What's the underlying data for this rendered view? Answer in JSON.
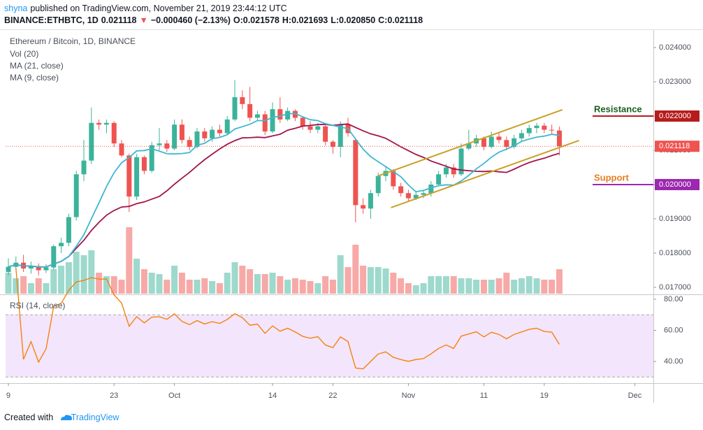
{
  "header": {
    "line1": [
      {
        "text": "shyna",
        "color": "#2196f3"
      },
      {
        "text": "published on TradingView.com, November 21, 2019 23:44:12 UTC",
        "color": "#131722"
      }
    ],
    "line2": [
      {
        "text": "BINANCE:ETHBTC, 1D",
        "color": "#131722"
      },
      {
        "text": "0.021118",
        "color": "#131722"
      },
      {
        "text": "▼",
        "color": "#ef5350"
      },
      {
        "text": "−0.000460 (−2.13%)",
        "color": "#131722"
      },
      {
        "text": "O:0.021578",
        "color": "#131722"
      },
      {
        "text": "H:0.021693",
        "color": "#131722"
      },
      {
        "text": "L:0.020850",
        "color": "#131722"
      },
      {
        "text": "C:0.021118",
        "color": "#131722"
      }
    ]
  },
  "footer": {
    "created": "Created with",
    "brand": "TradingView"
  },
  "chart_data": {
    "type": "candlestick",
    "title": "Ethereum / Bitcoin, 1D, BINANCE",
    "up_color": "#3bb39a",
    "down_color": "#ef5350",
    "xlim": [
      -0.37,
      85.46
    ],
    "xticks": [
      {
        "value": 0,
        "label": "9"
      },
      {
        "value": 14,
        "label": "23"
      },
      {
        "value": 22,
        "label": "Oct"
      },
      {
        "value": 35,
        "label": "14"
      },
      {
        "value": 43,
        "label": "22"
      },
      {
        "value": 53,
        "label": "Nov"
      },
      {
        "value": 63,
        "label": "11"
      },
      {
        "value": 71,
        "label": "19"
      },
      {
        "value": 83,
        "label": "Dec"
      }
    ],
    "ylim": [
      0.016816,
      0.024469
    ],
    "yticks": [
      {
        "value": 0.017,
        "label": "0.017000"
      },
      {
        "value": 0.018,
        "label": "0.018000"
      },
      {
        "value": 0.019,
        "label": "0.019000"
      },
      {
        "value": 0.02,
        "label": "0.020000"
      },
      {
        "value": 0.021,
        "label": "0.021000"
      },
      {
        "value": 0.022,
        "label": "0.022000"
      },
      {
        "value": 0.023,
        "label": "0.023000"
      },
      {
        "value": 0.024,
        "label": "0.024000"
      }
    ],
    "candles": {
      "open": [
        0.01745,
        0.0176,
        0.01772,
        0.01755,
        0.01762,
        0.0175,
        0.01758,
        0.0182,
        0.0183,
        0.01905,
        0.0203,
        0.0207,
        0.0218,
        0.02175,
        0.0218,
        0.0212,
        0.02085,
        0.01965,
        0.0208,
        0.0204,
        0.02115,
        0.0212,
        0.02105,
        0.02175,
        0.0213,
        0.0211,
        0.02155,
        0.02135,
        0.0216,
        0.0215,
        0.0219,
        0.02255,
        0.02235,
        0.02195,
        0.02205,
        0.02155,
        0.0222,
        0.0219,
        0.02215,
        0.02195,
        0.0217,
        0.0216,
        0.0217,
        0.02125,
        0.0211,
        0.02175,
        0.0213,
        0.0194,
        0.0193,
        0.01975,
        0.02025,
        0.0204,
        0.01995,
        0.01975,
        0.0196,
        0.0197,
        0.01975,
        0.02,
        0.0203,
        0.0205,
        0.0203,
        0.02105,
        0.0212,
        0.02135,
        0.0211,
        0.0214,
        0.0213,
        0.0211,
        0.02135,
        0.0215,
        0.02165,
        0.02172,
        0.0216,
        0.021578
      ],
      "high": [
        0.01785,
        0.0179,
        0.01795,
        0.01775,
        0.0177,
        0.01768,
        0.01825,
        0.01845,
        0.01915,
        0.0204,
        0.0213,
        0.02225,
        0.0219,
        0.0219,
        0.02185,
        0.0213,
        0.0209,
        0.0209,
        0.02085,
        0.02125,
        0.02165,
        0.0213,
        0.0219,
        0.0219,
        0.0214,
        0.02165,
        0.02165,
        0.0217,
        0.02175,
        0.022,
        0.02305,
        0.02275,
        0.02285,
        0.02215,
        0.02215,
        0.0224,
        0.02255,
        0.02225,
        0.0222,
        0.022,
        0.02185,
        0.0218,
        0.02175,
        0.0213,
        0.02185,
        0.02195,
        0.02135,
        0.0196,
        0.01985,
        0.02035,
        0.02055,
        0.02045,
        0.02005,
        0.01985,
        0.0198,
        0.01985,
        0.0201,
        0.0204,
        0.0206,
        0.0206,
        0.0212,
        0.0216,
        0.02145,
        0.0214,
        0.02155,
        0.0215,
        0.0214,
        0.02145,
        0.0216,
        0.02175,
        0.0218,
        0.0218,
        0.02175,
        0.021693
      ],
      "low": [
        0.01735,
        0.0175,
        0.01745,
        0.0174,
        0.01735,
        0.01742,
        0.01752,
        0.018,
        0.0182,
        0.01895,
        0.0201,
        0.0206,
        0.0216,
        0.0215,
        0.0211,
        0.0208,
        0.0192,
        0.01955,
        0.0203,
        0.02035,
        0.021,
        0.02095,
        0.021,
        0.0212,
        0.021,
        0.02105,
        0.02125,
        0.02125,
        0.0214,
        0.02145,
        0.02185,
        0.0222,
        0.02185,
        0.02185,
        0.02145,
        0.0215,
        0.0218,
        0.02185,
        0.02185,
        0.0216,
        0.0215,
        0.0215,
        0.02115,
        0.0209,
        0.0208,
        0.0214,
        0.0189,
        0.01915,
        0.019,
        0.01965,
        0.0201,
        0.01985,
        0.01965,
        0.0195,
        0.01955,
        0.0196,
        0.01965,
        0.01995,
        0.0202,
        0.0202,
        0.02025,
        0.021,
        0.0211,
        0.021,
        0.02105,
        0.0212,
        0.021,
        0.02105,
        0.02125,
        0.0214,
        0.0215,
        0.0215,
        0.02145,
        0.02085
      ],
      "close": [
        0.0176,
        0.01772,
        0.01755,
        0.01762,
        0.0175,
        0.01758,
        0.0182,
        0.0183,
        0.01905,
        0.0203,
        0.0207,
        0.0218,
        0.02175,
        0.0218,
        0.0212,
        0.02085,
        0.01965,
        0.0208,
        0.0204,
        0.02115,
        0.0212,
        0.02105,
        0.02175,
        0.0213,
        0.0211,
        0.02155,
        0.02135,
        0.0216,
        0.0215,
        0.0219,
        0.02255,
        0.02235,
        0.02195,
        0.02205,
        0.02155,
        0.0222,
        0.0219,
        0.02215,
        0.02195,
        0.0217,
        0.0216,
        0.0217,
        0.02125,
        0.0211,
        0.02175,
        0.0215,
        0.0194,
        0.0193,
        0.01975,
        0.02025,
        0.0204,
        0.01995,
        0.01975,
        0.0196,
        0.0197,
        0.01975,
        0.02,
        0.0203,
        0.0205,
        0.0203,
        0.02105,
        0.0212,
        0.02135,
        0.0211,
        0.0214,
        0.0213,
        0.0211,
        0.02135,
        0.0215,
        0.02165,
        0.02172,
        0.0216,
        0.021578,
        0.021118
      ]
    },
    "volume": {
      "name": "Vol (20)",
      "values": [
        30,
        22,
        25,
        15,
        22,
        15,
        35,
        40,
        45,
        60,
        55,
        62,
        30,
        25,
        25,
        20,
        95,
        50,
        35,
        30,
        28,
        20,
        40,
        30,
        20,
        20,
        22,
        18,
        15,
        30,
        45,
        40,
        35,
        28,
        28,
        30,
        25,
        20,
        22,
        20,
        18,
        15,
        25,
        20,
        55,
        38,
        70,
        40,
        38,
        38,
        36,
        30,
        22,
        15,
        12,
        15,
        25,
        25,
        25,
        25,
        22,
        22,
        20,
        20,
        20,
        22,
        30,
        20,
        22,
        25,
        22,
        20,
        20,
        35
      ]
    },
    "ma": [
      {
        "name": "MA (21, close)",
        "period": 21,
        "color": "#a3144a"
      },
      {
        "name": "MA (9, close)",
        "period": 9,
        "color": "#3fb8d0"
      }
    ],
    "last_price": {
      "value": 0.021118,
      "label": "0.021118",
      "color": "#ef5350"
    },
    "levels": [
      {
        "name": "Resistance",
        "value": 0.022,
        "label": "0.022000",
        "text_color": "#1b5e20",
        "line_color": "#b71c1c"
      },
      {
        "name": "Support",
        "value": 0.02,
        "label": "0.020000",
        "text_color": "#e67e22",
        "line_color": "#9c27b0"
      }
    ],
    "trendlines": {
      "color": "#c8a028",
      "lines": [
        [
          [
            48.9,
            0.020245
          ],
          [
            73.4,
            0.022184
          ]
        ],
        [
          [
            50.7,
            0.019327
          ],
          [
            75.6,
            0.021286
          ]
        ]
      ]
    },
    "rsi": {
      "name": "RSI (14, close)",
      "period": 14,
      "color": "#f57c00",
      "ylim": [
        26.5,
        82.25
      ],
      "yticks": [
        {
          "value": 80,
          "label": "80.00"
        },
        {
          "value": 60,
          "label": "60.00"
        },
        {
          "value": 40,
          "label": "40.00"
        }
      ],
      "band": [
        30,
        70
      ],
      "band_color": "#f3e5fb"
    }
  }
}
